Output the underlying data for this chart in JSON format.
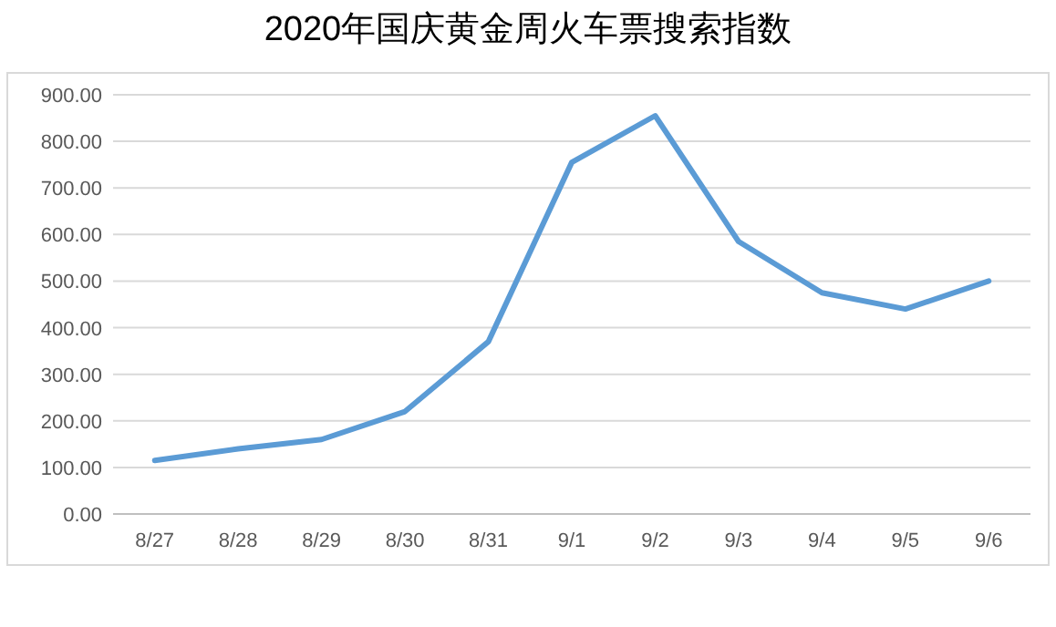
{
  "chart_data": {
    "type": "line",
    "title": "2020年国庆黄金周火车票搜索指数",
    "categories": [
      "8/27",
      "8/28",
      "8/29",
      "8/30",
      "8/31",
      "9/1",
      "9/2",
      "9/3",
      "9/4",
      "9/5",
      "9/6"
    ],
    "series": [
      {
        "color": "#5b9bd5",
        "values": [
          115,
          140,
          160,
          220,
          370,
          755,
          855,
          585,
          475,
          440,
          500
        ]
      }
    ],
    "ylim": [
      0,
      900
    ],
    "yticks": [
      {
        "value": 0,
        "label": "0.00"
      },
      {
        "value": 100,
        "label": "100.00"
      },
      {
        "value": 200,
        "label": "200.00"
      },
      {
        "value": 300,
        "label": "300.00"
      },
      {
        "value": 400,
        "label": "400.00"
      },
      {
        "value": 500,
        "label": "500.00"
      },
      {
        "value": 600,
        "label": "600.00"
      },
      {
        "value": 700,
        "label": "700.00"
      },
      {
        "value": 800,
        "label": "800.00"
      },
      {
        "value": 900,
        "label": "900.00"
      }
    ],
    "grid": "y",
    "marker": "none",
    "line_style": "solid"
  }
}
